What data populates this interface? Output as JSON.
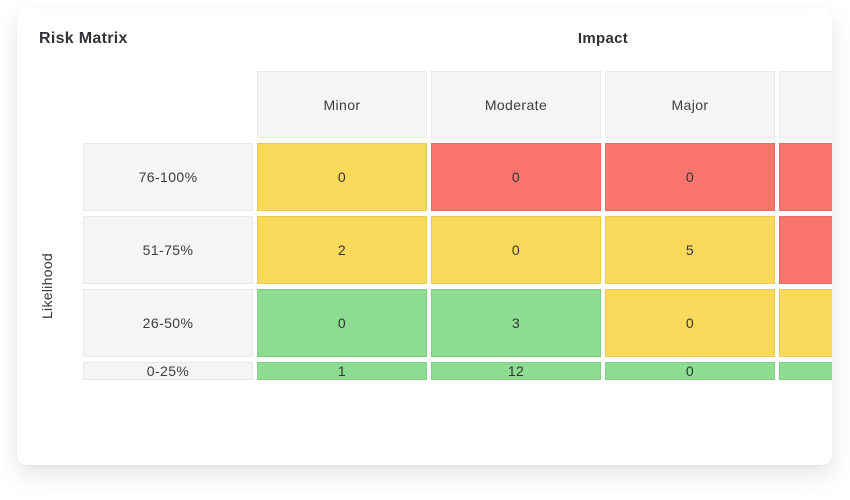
{
  "card": {
    "title": "Risk Matrix"
  },
  "matrix": {
    "x_axis_label": "Impact",
    "y_axis_label": "Likelihood",
    "column_headers": [
      "Minor",
      "Moderate",
      "Major",
      ""
    ],
    "rows": [
      {
        "label": "76-100%",
        "cells": [
          {
            "value": "0",
            "color": "yellow"
          },
          {
            "value": "0",
            "color": "red"
          },
          {
            "value": "0",
            "color": "red"
          },
          {
            "value": "",
            "color": "red"
          }
        ]
      },
      {
        "label": "51-75%",
        "cells": [
          {
            "value": "2",
            "color": "yellow"
          },
          {
            "value": "0",
            "color": "yellow"
          },
          {
            "value": "5",
            "color": "yellow"
          },
          {
            "value": "",
            "color": "red"
          }
        ]
      },
      {
        "label": "26-50%",
        "cells": [
          {
            "value": "0",
            "color": "green"
          },
          {
            "value": "3",
            "color": "green"
          },
          {
            "value": "0",
            "color": "yellow"
          },
          {
            "value": "",
            "color": "yellow"
          }
        ]
      },
      {
        "label": "0-25%",
        "cells": [
          {
            "value": "1",
            "color": "green"
          },
          {
            "value": "12",
            "color": "green"
          },
          {
            "value": "0",
            "color": "green"
          },
          {
            "value": "",
            "color": "green"
          }
        ]
      }
    ]
  },
  "colors": {
    "red": "#F9756E",
    "yellow": "#FBD95B",
    "green": "#8CDC92",
    "header_bg": "#F5F5F6"
  },
  "chart_data": {
    "type": "heatmap",
    "title": "Risk Matrix",
    "xlabel": "Impact",
    "ylabel": "Likelihood",
    "columns": [
      "Minor",
      "Moderate",
      "Major",
      ""
    ],
    "rows": [
      "76-100%",
      "51-75%",
      "26-50%",
      "0-25%"
    ],
    "values": [
      [
        0,
        0,
        0,
        null
      ],
      [
        2,
        0,
        5,
        null
      ],
      [
        0,
        3,
        0,
        null
      ],
      [
        1,
        12,
        0,
        null
      ]
    ],
    "cell_severity_colors": [
      [
        "yellow",
        "red",
        "red",
        "red"
      ],
      [
        "yellow",
        "yellow",
        "yellow",
        "red"
      ],
      [
        "green",
        "green",
        "yellow",
        "yellow"
      ],
      [
        "green",
        "green",
        "green",
        "green"
      ]
    ],
    "legend_position": "none",
    "grid": false
  }
}
